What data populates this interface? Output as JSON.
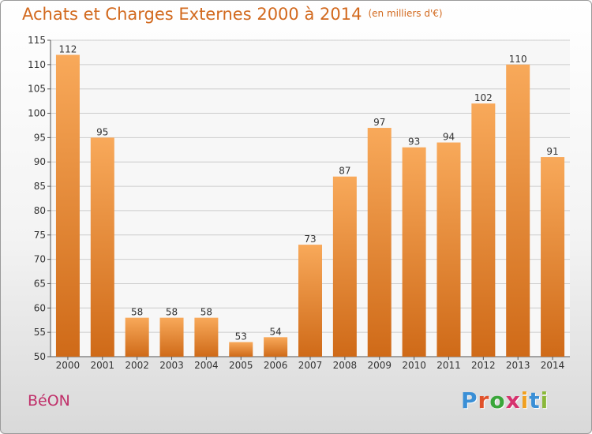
{
  "header": {
    "title": "Achats et Charges Externes 2000 à 2014",
    "unit": "(en milliers d'€)"
  },
  "footer": {
    "commune": "BéON",
    "logo_letters": [
      {
        "char": "P",
        "color": "#3a8fd6"
      },
      {
        "char": "r",
        "color": "#e0512a"
      },
      {
        "char": "o",
        "color": "#3aa63a"
      },
      {
        "char": "x",
        "color": "#d6326e"
      },
      {
        "char": "i",
        "color": "#f0a020"
      },
      {
        "char": "t",
        "color": "#3a8fd6"
      },
      {
        "char": "i",
        "color": "#8ab83a"
      }
    ]
  },
  "colors": {
    "bar_top": "#f8a95a",
    "bar_bottom": "#cf6a18",
    "label": "#333333",
    "grid": "#cccccc"
  },
  "chart_data": {
    "type": "bar",
    "categories": [
      "2000",
      "2001",
      "2002",
      "2003",
      "2004",
      "2005",
      "2006",
      "2007",
      "2008",
      "2009",
      "2010",
      "2011",
      "2012",
      "2013",
      "2014"
    ],
    "values": [
      112,
      95,
      58,
      58,
      58,
      53,
      54,
      73,
      87,
      97,
      93,
      94,
      102,
      110,
      91
    ],
    "ylim": [
      50,
      115
    ],
    "yticks": [
      50,
      55,
      60,
      65,
      70,
      75,
      80,
      85,
      90,
      95,
      100,
      105,
      110,
      115
    ],
    "grid": true,
    "data_labels": true
  }
}
